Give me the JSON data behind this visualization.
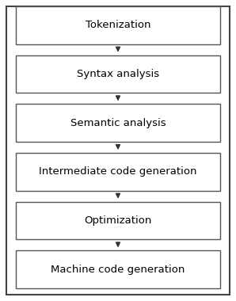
{
  "steps": [
    "Tokenization",
    "Syntax analysis",
    "Semantic analysis",
    "Intermediate code generation",
    "Optimization",
    "Machine code generation"
  ],
  "box_facecolor": "#ffffff",
  "box_edgecolor": "#555555",
  "text_color": "#000000",
  "arrow_color": "#333333",
  "bg_color": "#ffffff",
  "outer_border_color": "#444444",
  "font_size": 9.5,
  "fig_width": 2.98,
  "fig_height": 3.8,
  "dpi": 100
}
